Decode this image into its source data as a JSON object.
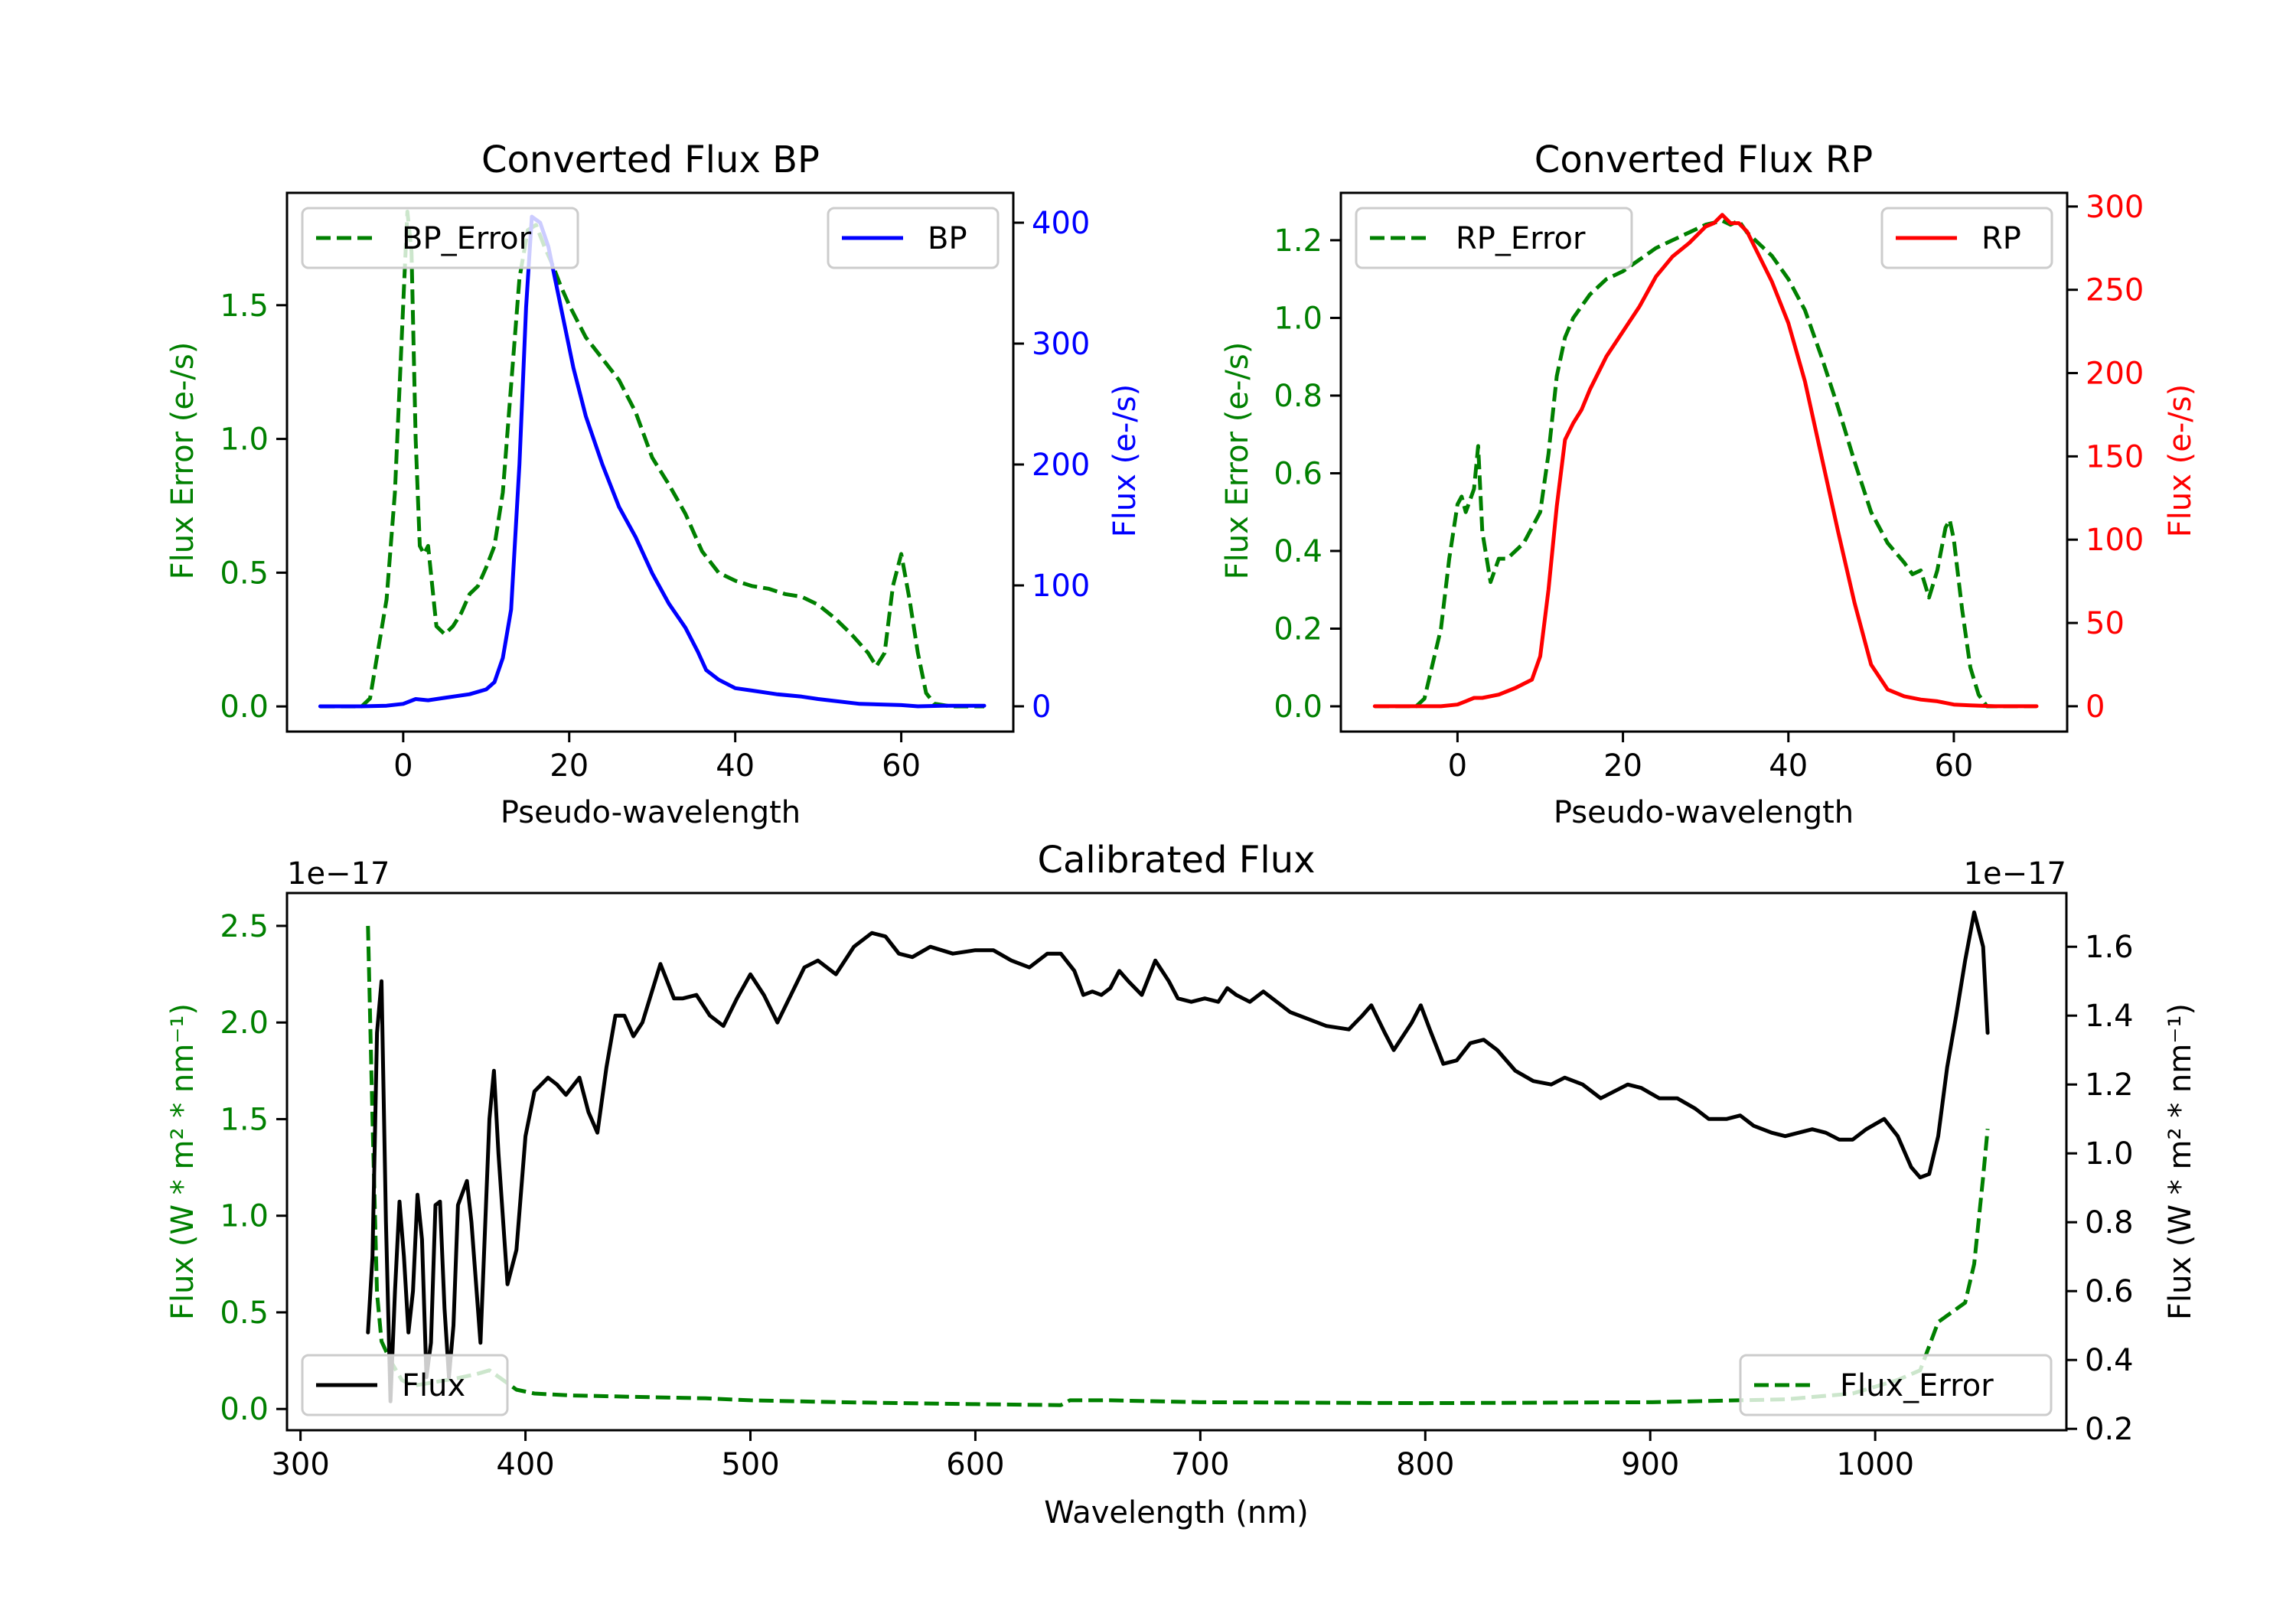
{
  "colors": {
    "error": "#008000",
    "bp": "#0000ff",
    "rp": "#ff0000",
    "flux": "#000000",
    "axis": "#000000",
    "legend_border": "#cccccc"
  },
  "chart_data": [
    {
      "id": "bp",
      "type": "line",
      "title": "Converted Flux BP",
      "xlabel": "Pseudo-wavelength",
      "ylabel_left": "Flux Error (e-/s)",
      "ylabel_right": "Flux (e-/s)",
      "xlim": [
        -14.0,
        73.5
      ],
      "ylim_left": [
        -0.094,
        1.92
      ],
      "ylim_right": [
        -20.9,
        424.7
      ],
      "xticks": [
        0,
        20,
        40,
        60
      ],
      "xtick_labels": [
        "0",
        "20",
        "40",
        "60"
      ],
      "yticks_left": [
        0.0,
        0.5,
        1.0,
        1.5
      ],
      "ytick_labels_left": [
        "0.0",
        "0.5",
        "1.0",
        "1.5"
      ],
      "yticks_right": [
        0,
        100,
        200,
        300,
        400
      ],
      "ytick_labels_right": [
        "0",
        "100",
        "200",
        "300",
        "400"
      ],
      "grid": false,
      "legends": [
        {
          "label": "BP_Error",
          "series": "BP_Error",
          "placement": "upper-left"
        },
        {
          "label": "BP",
          "series": "BP",
          "placement": "upper-right"
        }
      ],
      "series": [
        {
          "name": "BP_Error",
          "axis": "left",
          "style": "dashed",
          "color_key": "error",
          "x": [
            -10,
            -5,
            -4,
            -2,
            -1,
            0,
            0.5,
            1,
            1.5,
            2,
            2.5,
            3,
            3.5,
            4,
            5,
            6,
            7,
            8,
            9,
            10,
            11,
            12,
            13,
            14,
            15,
            16,
            17,
            18,
            19,
            20,
            22,
            24,
            26,
            28,
            30,
            32,
            34,
            36,
            38,
            40,
            42,
            44,
            46,
            48,
            50,
            52,
            54,
            56,
            57,
            58,
            59,
            60,
            61,
            62,
            63,
            64,
            66,
            70
          ],
          "y": [
            0,
            0,
            0.03,
            0.4,
            0.8,
            1.5,
            1.85,
            1.7,
            1.0,
            0.6,
            0.57,
            0.6,
            0.45,
            0.3,
            0.27,
            0.3,
            0.35,
            0.42,
            0.45,
            0.52,
            0.6,
            0.8,
            1.2,
            1.6,
            1.78,
            1.8,
            1.72,
            1.65,
            1.57,
            1.5,
            1.38,
            1.3,
            1.22,
            1.1,
            0.93,
            0.83,
            0.72,
            0.58,
            0.5,
            0.47,
            0.45,
            0.44,
            0.42,
            0.41,
            0.38,
            0.33,
            0.27,
            0.2,
            0.15,
            0.2,
            0.45,
            0.57,
            0.4,
            0.2,
            0.05,
            0.01,
            0,
            0
          ]
        },
        {
          "name": "BP",
          "axis": "right",
          "style": "solid",
          "color_key": "bp",
          "x": [
            -10,
            -5,
            -2,
            0,
            1.5,
            3,
            5,
            8,
            10,
            11,
            12,
            13,
            14,
            14.8,
            15.5,
            16.5,
            17.5,
            19,
            20.5,
            22,
            24,
            26,
            28,
            30,
            32,
            34,
            35.5,
            36.5,
            38,
            40,
            42,
            45,
            48,
            50,
            55,
            60,
            62,
            65,
            70
          ],
          "y": [
            0,
            0,
            0.5,
            2,
            6,
            5,
            7,
            10,
            14,
            20,
            40,
            80,
            200,
            330,
            405,
            400,
            380,
            330,
            280,
            240,
            200,
            165,
            140,
            110,
            85,
            65,
            45,
            30,
            22,
            15,
            13,
            10,
            8,
            6,
            2,
            1,
            0,
            0.5,
            0.5
          ]
        }
      ]
    },
    {
      "id": "rp",
      "type": "line",
      "title": "Converted Flux RP",
      "xlabel": "Pseudo-wavelength",
      "ylabel_left": "Flux Error (e-/s)",
      "ylabel_right": "Flux (e-/s)",
      "xlim": [
        -14.1,
        73.7
      ],
      "ylim_left": [
        -0.065,
        1.322
      ],
      "ylim_right": [
        -15.2,
        308.2
      ],
      "xticks": [
        0,
        20,
        40,
        60
      ],
      "xtick_labels": [
        "0",
        "20",
        "40",
        "60"
      ],
      "yticks_left": [
        0.0,
        0.2,
        0.4,
        0.6,
        0.8,
        1.0,
        1.2
      ],
      "ytick_labels_left": [
        "0.0",
        "0.2",
        "0.4",
        "0.6",
        "0.8",
        "1.0",
        "1.2"
      ],
      "yticks_right": [
        0,
        50,
        100,
        150,
        200,
        250,
        300
      ],
      "ytick_labels_right": [
        "0",
        "50",
        "100",
        "150",
        "200",
        "250",
        "300"
      ],
      "grid": false,
      "legends": [
        {
          "label": "RP_Error",
          "series": "RP_Error",
          "placement": "upper-left"
        },
        {
          "label": "RP",
          "series": "RP",
          "placement": "upper-right"
        }
      ],
      "series": [
        {
          "name": "RP_Error",
          "axis": "left",
          "style": "dashed",
          "color_key": "error",
          "x": [
            -10,
            -5,
            -4,
            -2,
            -1,
            0,
            0.5,
            1,
            2,
            2.5,
            3,
            4,
            5,
            6,
            8,
            10,
            11,
            12,
            13,
            14,
            16,
            18,
            20,
            22,
            24,
            26,
            28,
            30,
            32,
            33,
            34,
            35,
            36,
            38,
            40,
            42,
            44,
            46,
            48,
            50,
            52,
            54,
            55,
            56,
            57,
            58,
            59,
            59.5,
            60,
            61,
            62,
            63,
            64,
            70
          ],
          "y": [
            0,
            0,
            0.02,
            0.2,
            0.38,
            0.52,
            0.54,
            0.5,
            0.56,
            0.67,
            0.45,
            0.32,
            0.38,
            0.38,
            0.42,
            0.5,
            0.65,
            0.85,
            0.95,
            1.0,
            1.06,
            1.1,
            1.12,
            1.15,
            1.18,
            1.2,
            1.22,
            1.24,
            1.25,
            1.24,
            1.25,
            1.22,
            1.2,
            1.16,
            1.1,
            1.02,
            0.9,
            0.77,
            0.63,
            0.5,
            0.42,
            0.37,
            0.34,
            0.35,
            0.28,
            0.35,
            0.46,
            0.48,
            0.43,
            0.25,
            0.1,
            0.03,
            0,
            0
          ]
        },
        {
          "name": "RP",
          "axis": "right",
          "style": "solid",
          "color_key": "rp",
          "x": [
            -10,
            -2,
            0,
            1,
            2,
            3,
            5,
            7,
            9,
            10,
            11,
            12,
            13,
            14,
            15,
            16,
            18,
            20,
            22,
            24,
            26,
            28,
            30,
            31,
            32,
            33,
            34,
            35,
            36,
            38,
            40,
            42,
            44,
            46,
            48,
            50,
            52,
            54,
            56,
            58,
            60,
            62,
            65,
            70
          ],
          "y": [
            0,
            0,
            1,
            3,
            5,
            5,
            7,
            11,
            16,
            30,
            70,
            120,
            160,
            170,
            178,
            190,
            210,
            225,
            240,
            258,
            270,
            278,
            288,
            290,
            295,
            290,
            290,
            285,
            275,
            255,
            230,
            195,
            150,
            105,
            62,
            25,
            10,
            6,
            4,
            3,
            1,
            0.5,
            0,
            0
          ]
        }
      ]
    },
    {
      "id": "calibrated",
      "type": "line",
      "title": "Calibrated Flux",
      "xlabel": "Wavelength (nm)",
      "ylabel_left": "Flux (W * m² * nm⁻¹)",
      "ylabel_right": "Flux (W * m² * nm⁻¹)",
      "left_offset_label": "1e−17",
      "right_offset_label": "1e−17",
      "scale_factor": 1e-17,
      "xlim": [
        294,
        1085
      ],
      "ylim_left": [
        -0.11,
        2.67
      ],
      "ylim_right": [
        0.196,
        1.756
      ],
      "xticks": [
        300,
        400,
        500,
        600,
        700,
        800,
        900,
        1000
      ],
      "xtick_labels": [
        "300",
        "400",
        "500",
        "600",
        "700",
        "800",
        "900",
        "1000"
      ],
      "yticks_left": [
        0.0,
        0.5,
        1.0,
        1.5,
        2.0,
        2.5
      ],
      "ytick_labels_left": [
        "0.0",
        "0.5",
        "1.0",
        "1.5",
        "2.0",
        "2.5"
      ],
      "yticks_right": [
        0.2,
        0.4,
        0.6,
        0.8,
        1.0,
        1.2,
        1.4,
        1.6
      ],
      "ytick_labels_right": [
        "0.2",
        "0.4",
        "0.6",
        "0.8",
        "1.0",
        "1.2",
        "1.4",
        "1.6"
      ],
      "grid": false,
      "legends": [
        {
          "label": "Flux",
          "series": "Flux",
          "placement": "lower-left"
        },
        {
          "label": "Flux_Error",
          "series": "Flux_Error",
          "placement": "lower-right"
        }
      ],
      "series": [
        {
          "name": "Flux_Error",
          "axis": "left",
          "style": "dashed",
          "color_key": "error",
          "x": [
            330,
            332,
            334,
            336,
            340,
            345,
            350,
            360,
            370,
            378,
            384,
            390,
            396,
            404,
            420,
            440,
            460,
            480,
            500,
            540,
            600,
            638,
            642,
            660,
            700,
            800,
            900,
            960,
            990,
            1010,
            1020,
            1028,
            1034,
            1040,
            1044,
            1048,
            1050
          ],
          "y": [
            2.5,
            1.5,
            0.6,
            0.35,
            0.25,
            0.15,
            0.12,
            0.14,
            0.16,
            0.18,
            0.2,
            0.15,
            0.1,
            0.08,
            0.07,
            0.065,
            0.06,
            0.055,
            0.045,
            0.035,
            0.025,
            0.02,
            0.045,
            0.045,
            0.035,
            0.03,
            0.035,
            0.05,
            0.08,
            0.15,
            0.2,
            0.45,
            0.5,
            0.55,
            0.75,
            1.2,
            1.45
          ]
        },
        {
          "name": "Flux",
          "axis": "right",
          "style": "solid",
          "color_key": "flux",
          "x": [
            330,
            332,
            334,
            336,
            338,
            340,
            342,
            344,
            346,
            348,
            350,
            352,
            354,
            356,
            358,
            360,
            362,
            364,
            366,
            368,
            370,
            374,
            376,
            380,
            384,
            386,
            388,
            392,
            396,
            400,
            404,
            410,
            414,
            418,
            424,
            428,
            432,
            436,
            440,
            444,
            448,
            452,
            460,
            466,
            470,
            476,
            482,
            488,
            494,
            500,
            506,
            512,
            518,
            524,
            530,
            538,
            546,
            554,
            560,
            566,
            572,
            580,
            590,
            600,
            608,
            616,
            624,
            632,
            638,
            644,
            648,
            652,
            656,
            660,
            664,
            668,
            674,
            680,
            686,
            690,
            696,
            702,
            708,
            712,
            716,
            722,
            728,
            734,
            740,
            748,
            756,
            766,
            772,
            776,
            782,
            786,
            794,
            798,
            802,
            808,
            814,
            820,
            826,
            832,
            840,
            848,
            856,
            862,
            870,
            878,
            884,
            890,
            896,
            904,
            912,
            920,
            926,
            934,
            940,
            946,
            954,
            960,
            966,
            972,
            978,
            984,
            990,
            996,
            1004,
            1010,
            1016,
            1020,
            1024,
            1028,
            1032,
            1036,
            1040,
            1044,
            1048,
            1050
          ],
          "y": [
            0.48,
            0.7,
            1.35,
            1.5,
            0.8,
            0.28,
            0.6,
            0.86,
            0.7,
            0.48,
            0.6,
            0.88,
            0.75,
            0.35,
            0.45,
            0.85,
            0.86,
            0.55,
            0.35,
            0.5,
            0.85,
            0.92,
            0.8,
            0.45,
            1.1,
            1.24,
            1.0,
            0.62,
            0.72,
            1.05,
            1.18,
            1.22,
            1.2,
            1.17,
            1.22,
            1.12,
            1.06,
            1.25,
            1.4,
            1.4,
            1.34,
            1.38,
            1.55,
            1.45,
            1.45,
            1.46,
            1.4,
            1.37,
            1.45,
            1.52,
            1.46,
            1.38,
            1.46,
            1.54,
            1.56,
            1.52,
            1.6,
            1.64,
            1.63,
            1.58,
            1.57,
            1.6,
            1.58,
            1.59,
            1.59,
            1.56,
            1.54,
            1.58,
            1.58,
            1.53,
            1.46,
            1.47,
            1.46,
            1.48,
            1.53,
            1.5,
            1.46,
            1.56,
            1.5,
            1.45,
            1.44,
            1.45,
            1.44,
            1.48,
            1.46,
            1.44,
            1.47,
            1.44,
            1.41,
            1.39,
            1.37,
            1.36,
            1.4,
            1.43,
            1.35,
            1.3,
            1.38,
            1.43,
            1.36,
            1.26,
            1.27,
            1.32,
            1.33,
            1.3,
            1.24,
            1.21,
            1.2,
            1.22,
            1.2,
            1.16,
            1.18,
            1.2,
            1.19,
            1.16,
            1.16,
            1.13,
            1.1,
            1.1,
            1.11,
            1.08,
            1.06,
            1.05,
            1.06,
            1.07,
            1.06,
            1.04,
            1.04,
            1.07,
            1.1,
            1.05,
            0.96,
            0.93,
            0.94,
            1.05,
            1.25,
            1.4,
            1.56,
            1.7,
            1.6,
            1.35
          ]
        }
      ]
    }
  ]
}
